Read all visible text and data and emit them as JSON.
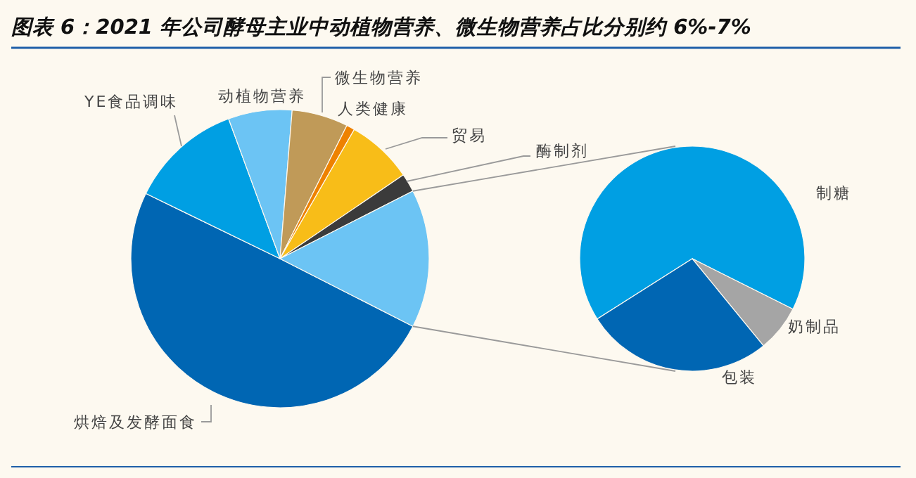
{
  "chart_data": [
    {
      "type": "pie",
      "title": "图表 6：2021 年公司酵母主业中动植物营养、微生物营养占比分别约 6%-7%",
      "categories": [
        "烘焙及发酵面食",
        "YE食品调味",
        "动植物营养",
        "微生物营养",
        "人类健康",
        "贸易",
        "酶制剂",
        null
      ],
      "values": [
        49.7,
        12.2,
        6.9,
        6.1,
        0.9,
        7.2,
        2.0,
        15.0
      ],
      "colors": [
        "#0066b3",
        "#009fe3",
        "#6cc4f4",
        "#c09a58",
        "#ee8200",
        "#f8bd18",
        "#3b3b3b",
        "#6cc4f4"
      ]
    },
    {
      "type": "pie",
      "categories": [
        "制糖",
        "奶制品",
        "包装"
      ],
      "values": [
        66.4,
        6.7,
        26.9
      ],
      "colors": [
        "#009fe3",
        "#a5a5a5",
        "#0066b3"
      ]
    }
  ]
}
